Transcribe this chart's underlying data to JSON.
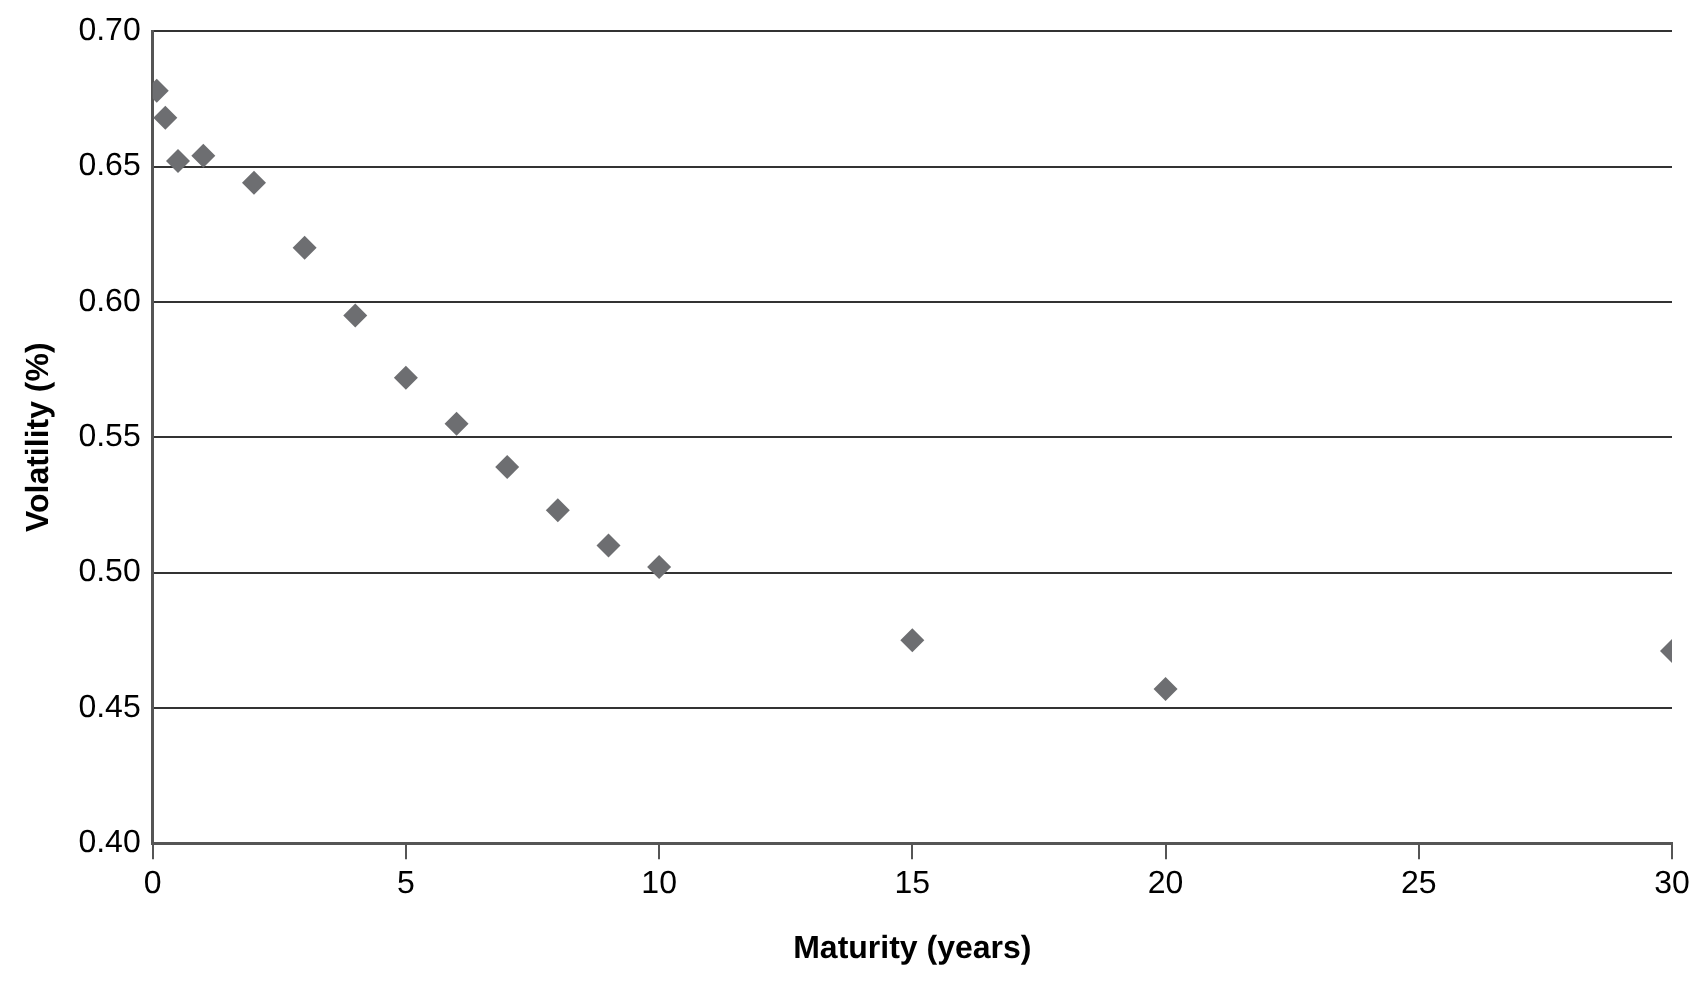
{
  "chart_data": {
    "type": "scatter",
    "xlabel": "Maturity (years)",
    "ylabel": "Volatility (%)",
    "x": [
      0.08,
      0.25,
      0.5,
      1,
      2,
      3,
      4,
      5,
      6,
      7,
      8,
      9,
      10,
      15,
      20,
      30
    ],
    "series": [
      {
        "color": "#6d6e71",
        "values": [
          0.678,
          0.668,
          0.652,
          0.654,
          0.644,
          0.62,
          0.595,
          0.572,
          0.555,
          0.539,
          0.523,
          0.51,
          0.502,
          0.475,
          0.457,
          0.471
        ]
      }
    ],
    "xlim": [
      0,
      30
    ],
    "xticks": [
      0,
      5,
      10,
      15,
      20,
      25,
      30
    ],
    "ylim": [
      0.4,
      0.7
    ],
    "yticks": [
      {
        "value": 0.4,
        "label": "0.40"
      },
      {
        "value": 0.45,
        "label": "0.45"
      },
      {
        "value": 0.5,
        "label": "0.50"
      },
      {
        "value": 0.55,
        "label": "0.55"
      },
      {
        "value": 0.6,
        "label": "0.60"
      },
      {
        "value": 0.65,
        "label": "0.65"
      },
      {
        "value": 0.7,
        "label": "0.70"
      }
    ],
    "grid": "y",
    "legend": false,
    "marker": "diamond"
  }
}
